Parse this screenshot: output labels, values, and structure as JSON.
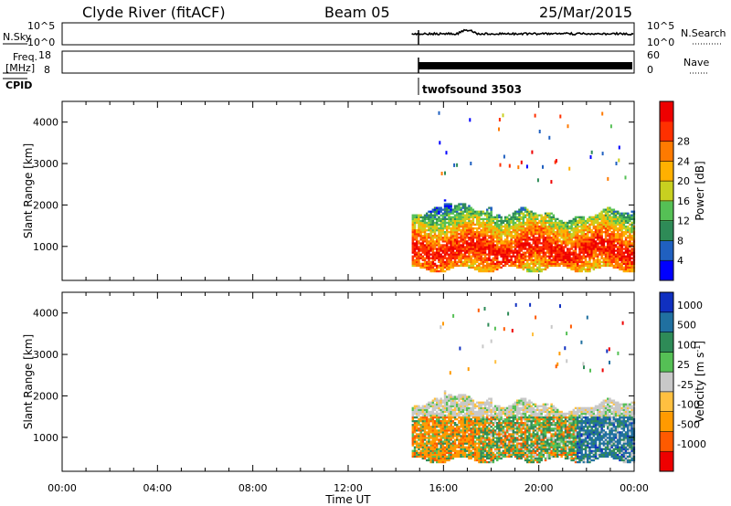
{
  "header": {
    "station": "Clyde River (fitACF)",
    "beam": "Beam 05",
    "date": "25/Mar/2015"
  },
  "strip_labels": {
    "nsky": "N.Sky",
    "nsky_ticks": [
      "10^5",
      "10^0"
    ],
    "nsearch": "N.Search",
    "nsearch_ticks": [
      "10^5",
      "10^0"
    ],
    "freq_line1": "Freq.",
    "freq_line2": "[MHz]",
    "freq_ticks": [
      "18",
      "8"
    ],
    "nave": "Nave",
    "nave_ticks": [
      "60",
      "0"
    ],
    "cpid": "CPID",
    "cpid_value": "twofsound 3503"
  },
  "colors": {
    "power": [
      "#0000ff",
      "#2060c0",
      "#2e8b57",
      "#55c055",
      "#c8d020",
      "#ffb000",
      "#ff7a00",
      "#ff3000",
      "#ee0000"
    ],
    "velocity": [
      "#ee0000",
      "#ff5a00",
      "#ff9a00",
      "#ffc040",
      "#c8c8c8",
      "#55c055",
      "#2e8b57",
      "#2070a0",
      "#1030c0"
    ]
  },
  "chart_data": [
    {
      "type": "heatmap",
      "title": "",
      "xlabel": "Time UT",
      "ylabel": "Slant Range [km]",
      "xlim": [
        "00:00",
        "24:00"
      ],
      "ylim": [
        180,
        4500
      ],
      "x_ticks": [
        "00:00",
        "04:00",
        "08:00",
        "12:00",
        "16:00",
        "20:00",
        "00:00"
      ],
      "y_ticks": [
        "1000",
        "2000",
        "3000",
        "4000"
      ],
      "colorbar": {
        "label": "Power [dB]",
        "ticks": [
          "4",
          "8",
          "12",
          "16",
          "20",
          "24",
          "28"
        ]
      },
      "data_start": "14:40",
      "data_end": "24:00",
      "description_ranges_km": {
        "main_band": [
          500,
          2300
        ],
        "strongest": [
          600,
          1300
        ]
      }
    },
    {
      "type": "heatmap",
      "title": "",
      "xlabel": "Time UT",
      "ylabel": "Slant Range [km]",
      "xlim": [
        "00:00",
        "24:00"
      ],
      "ylim": [
        180,
        4500
      ],
      "x_ticks": [
        "00:00",
        "04:00",
        "08:00",
        "12:00",
        "16:00",
        "20:00",
        "00:00"
      ],
      "y_ticks": [
        "1000",
        "2000",
        "3000",
        "4000"
      ],
      "colorbar": {
        "label": "Velocity [m s^-1]",
        "ticks": [
          "1000",
          "500",
          "100",
          "25",
          "-25",
          "-100",
          "-500",
          "-1000"
        ]
      },
      "data_start": "14:40",
      "data_end": "24:00"
    }
  ]
}
